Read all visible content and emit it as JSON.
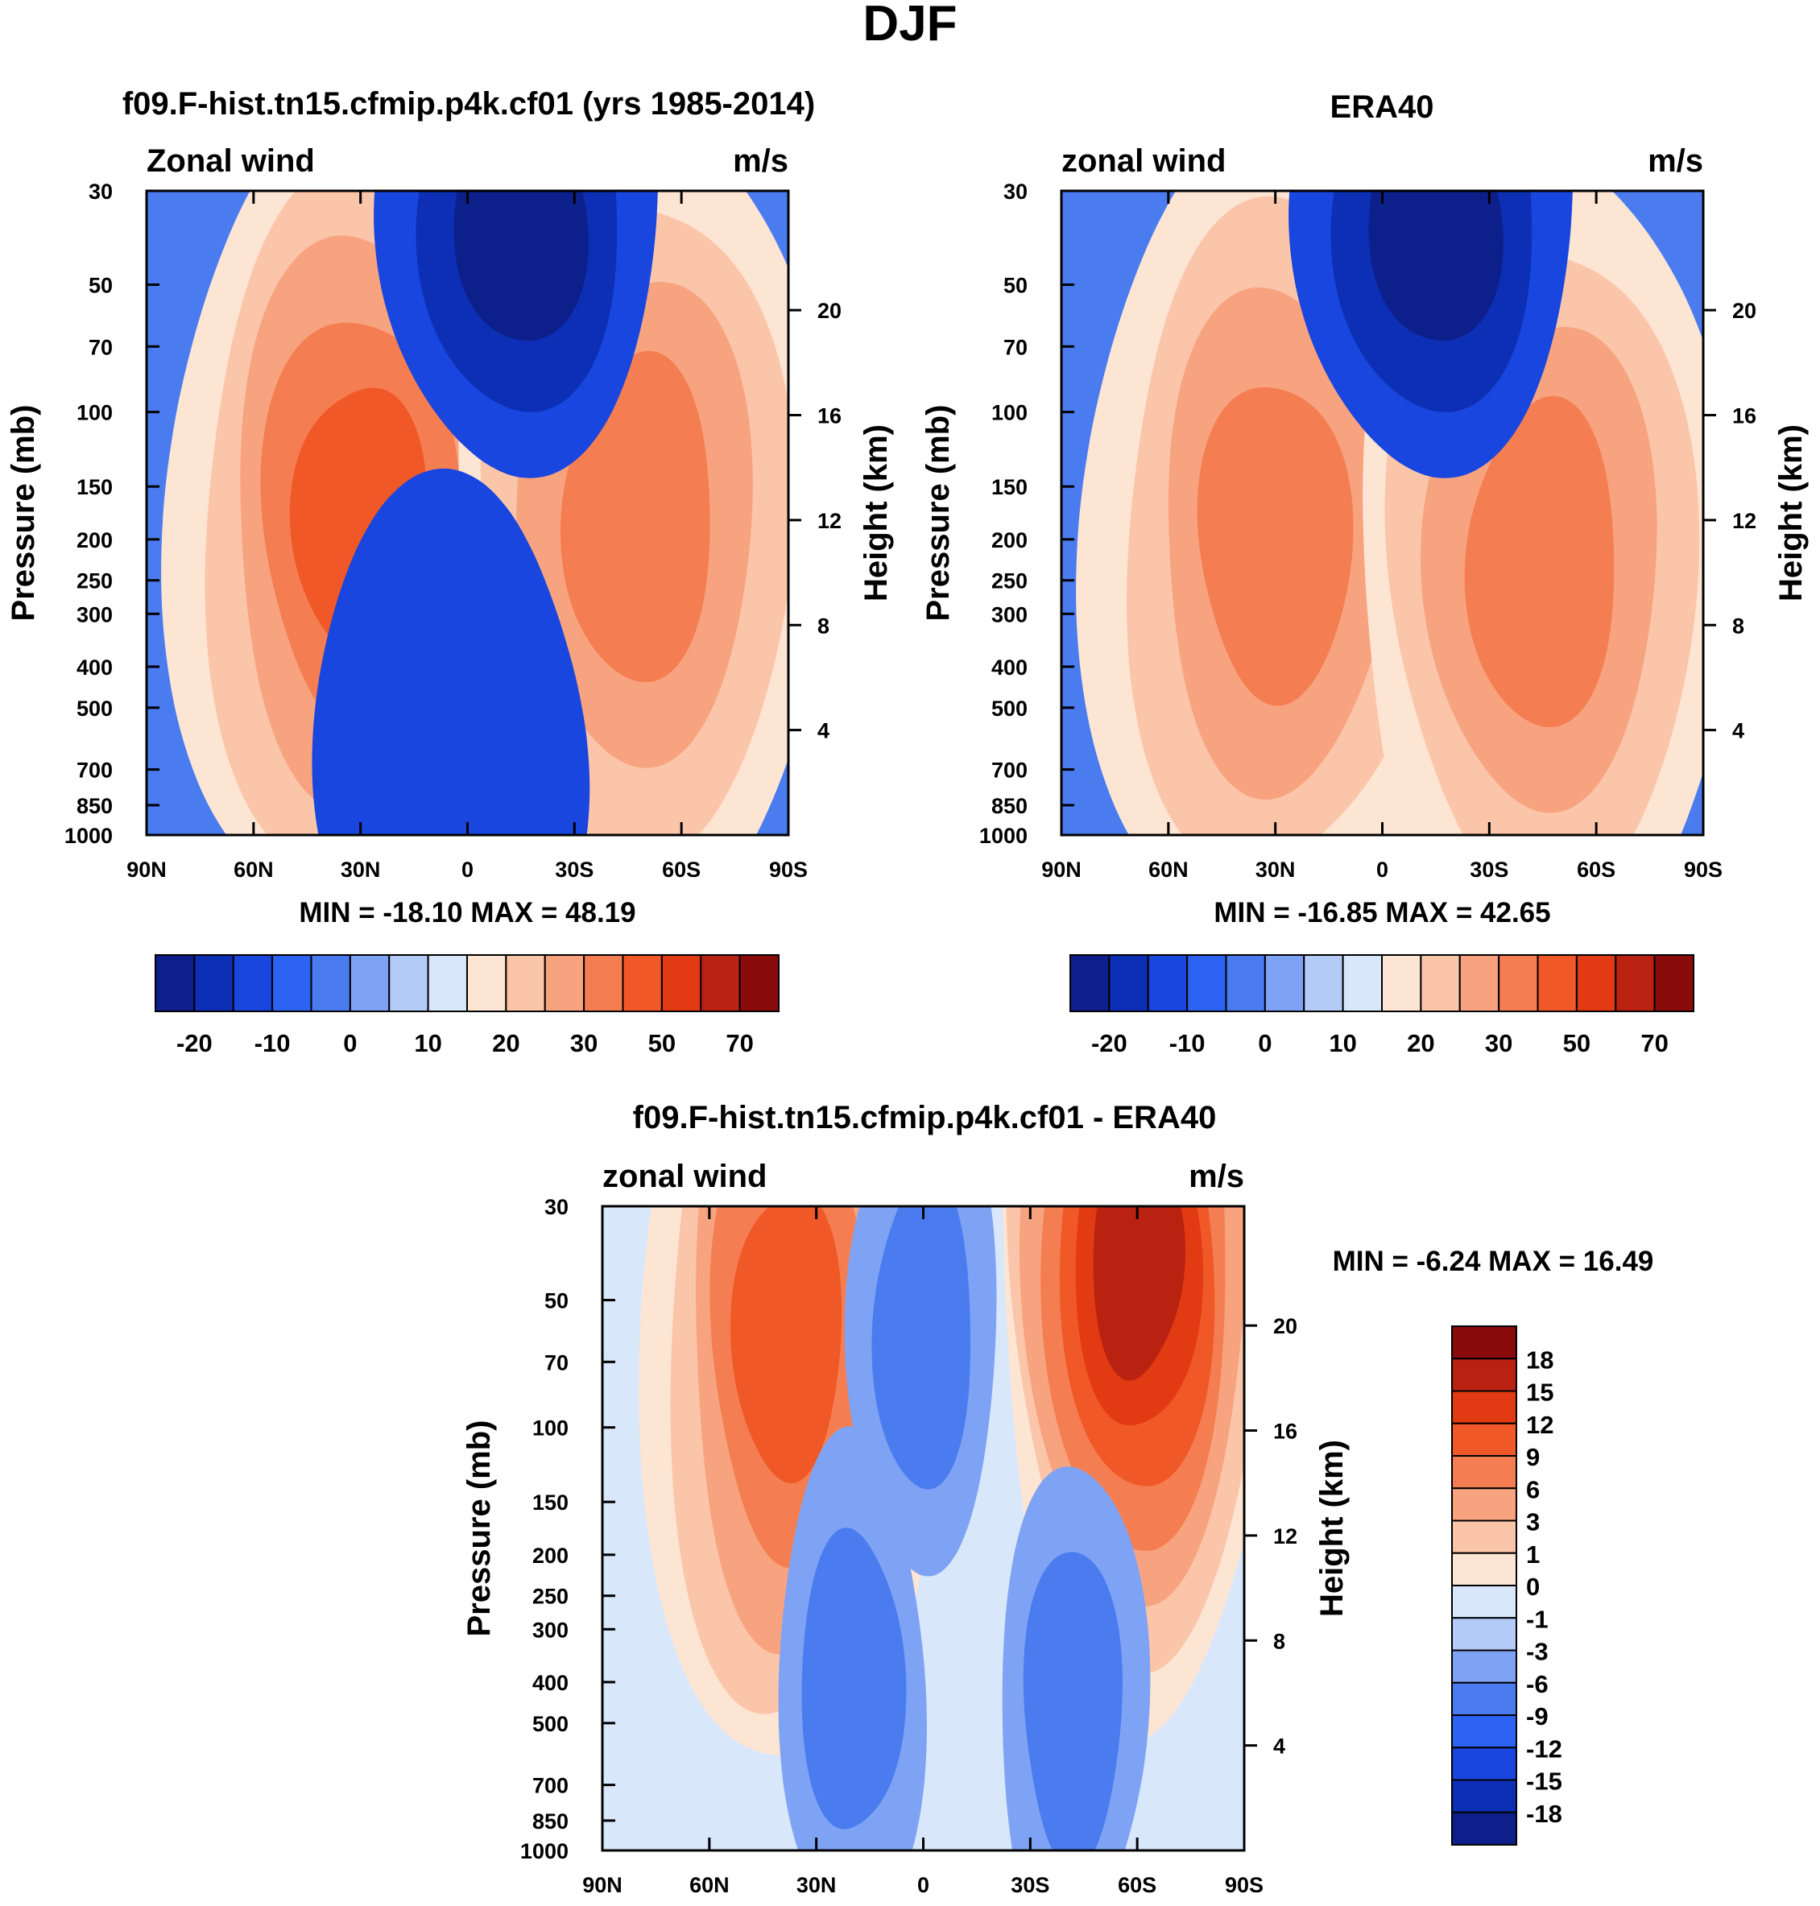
{
  "figure_title": "DJF",
  "palette": {
    "-20": "#0c1f8a",
    "-15": "#0c2fb5",
    "-10": "#1846de",
    "-5": "#2d63f2",
    "0": "#4a7cf0",
    "5": "#7fa3f4",
    "10": "#b4cbf8",
    "15": "#d9e7fb",
    "20": "#fde5d3",
    "25": "#fbc5aa",
    "30": "#f8a37f",
    "40": "#f47e51",
    "50": "#f05827",
    "60": "#e23a12",
    "70": "#b92210",
    "80": "#8a0b0b",
    "neg": "#2d63f2"
  },
  "diff_palette": {
    "-18": "#0c1f8a",
    "-15": "#0c2fb5",
    "-12": "#1846de",
    "-9": "#2d63f2",
    "-6": "#4a7cf0",
    "-3": "#7fa3f4",
    "-1": "#b4cbf8",
    "0": "#d9e7fb",
    "1": "#fde5d3",
    "3": "#fbc5aa",
    "6": "#f8a37f",
    "9": "#f47e51",
    "12": "#f05827",
    "15": "#e23a12",
    "18": "#b92210",
    "max": "#8a0b0b"
  },
  "chart_data": [
    {
      "type": "contour",
      "id": "model",
      "title": "f09.F-hist.tn15.cfmip.p4k.cf01 (yrs 1985-2014)",
      "left_label": "Zonal wind",
      "right_label": "m/s",
      "ylabel": "Pressure (mb)",
      "ylabel_right": "Height (km)",
      "x_ticks": [
        "90N",
        "60N",
        "30N",
        "0",
        "30S",
        "60S",
        "90S"
      ],
      "x_range": [
        90,
        -90
      ],
      "pressure_ticks": [
        30,
        50,
        70,
        100,
        150,
        200,
        250,
        300,
        400,
        500,
        700,
        850,
        1000
      ],
      "height_ticks": [
        20,
        16,
        12,
        8,
        4
      ],
      "stats": "MIN = -18.10  MAX =  48.19",
      "min": -18.1,
      "max": 48.19,
      "features": [
        {
          "kind": "jet",
          "lat": 30,
          "p_core": 180,
          "peak": 48,
          "levels": [
            20,
            25,
            30,
            40,
            50
          ]
        },
        {
          "kind": "jet",
          "lat": -48,
          "p_core": 180,
          "peak": 42,
          "levels": [
            20,
            25,
            30,
            40
          ]
        },
        {
          "kind": "easterly",
          "lat": -15,
          "p_core": 35,
          "min": -18,
          "levels": [
            -5,
            -10,
            -15
          ]
        },
        {
          "kind": "easterly",
          "lat": 5,
          "p_core": 600,
          "min": -8,
          "levels": [
            -5
          ]
        }
      ]
    },
    {
      "type": "contour",
      "id": "obs",
      "title": "ERA40",
      "left_label": "zonal wind",
      "right_label": "m/s",
      "ylabel": "Pressure (mb)",
      "ylabel_right": "Height (km)",
      "x_ticks": [
        "90N",
        "60N",
        "30N",
        "0",
        "30S",
        "60S",
        "90S"
      ],
      "x_range": [
        90,
        -90
      ],
      "pressure_ticks": [
        30,
        50,
        70,
        100,
        150,
        200,
        250,
        300,
        400,
        500,
        700,
        850,
        1000
      ],
      "height_ticks": [
        20,
        16,
        12,
        8,
        4
      ],
      "stats": "MIN = -16.85  MAX =  42.65",
      "min": -16.85,
      "max": 42.65,
      "features": [
        {
          "kind": "jet",
          "lat": 30,
          "p_core": 200,
          "peak": 42,
          "levels": [
            20,
            25,
            30,
            40
          ]
        },
        {
          "kind": "jet",
          "lat": -45,
          "p_core": 230,
          "peak": 36,
          "levels": [
            20,
            25,
            30,
            40
          ]
        },
        {
          "kind": "easterly",
          "lat": -15,
          "p_core": 35,
          "min": -16,
          "levels": [
            -5,
            -10,
            -15
          ]
        }
      ]
    },
    {
      "type": "contour",
      "id": "diff",
      "title": "f09.F-hist.tn15.cfmip.p4k.cf01 - ERA40",
      "left_label": "zonal wind",
      "right_label": "m/s",
      "ylabel": "Pressure (mb)",
      "ylabel_right": "Height (km)",
      "x_ticks": [
        "90N",
        "60N",
        "30N",
        "0",
        "30S",
        "60S",
        "90S"
      ],
      "x_range": [
        90,
        -90
      ],
      "pressure_ticks": [
        30,
        50,
        70,
        100,
        150,
        200,
        250,
        300,
        400,
        500,
        700,
        850,
        1000
      ],
      "height_ticks": [
        20,
        16,
        12,
        8,
        4
      ],
      "stats": "MIN =  -6.24  MAX =  16.49",
      "min": -6.24,
      "max": 16.49,
      "features": [
        {
          "kind": "positive",
          "lat": 38,
          "p_core": 60,
          "peak": 12,
          "levels": [
            1,
            3,
            6,
            9,
            12
          ]
        },
        {
          "kind": "positive",
          "lat": -60,
          "p_core": 40,
          "peak": 16,
          "levels": [
            1,
            3,
            6,
            9,
            12,
            15,
            18
          ]
        },
        {
          "kind": "negative",
          "lat": 0,
          "p_core": 60,
          "min": -4,
          "levels": [
            -1,
            -3
          ]
        },
        {
          "kind": "negative",
          "lat": 20,
          "p_core": 400,
          "min": -5,
          "levels": [
            -1,
            -3
          ]
        },
        {
          "kind": "negative",
          "lat": -42,
          "p_core": 450,
          "min": -6,
          "levels": [
            -1,
            -3
          ]
        }
      ]
    }
  ],
  "colorbar_main": {
    "levels": [
      -20,
      -15,
      -10,
      -5,
      0,
      5,
      10,
      15,
      20,
      25,
      30,
      40,
      50,
      60,
      70,
      80
    ],
    "labels": [
      "-20",
      "-10",
      "0",
      "10",
      "20",
      "30",
      "50",
      "70"
    ]
  },
  "colorbar_diff": {
    "levels": [
      -18,
      -15,
      -12,
      -9,
      -6,
      -3,
      -1,
      0,
      1,
      3,
      6,
      9,
      12,
      15,
      18,
      "max"
    ],
    "labels": [
      "18",
      "15",
      "12",
      "9",
      "6",
      "3",
      "1",
      "0",
      "-1",
      "-3",
      "-6",
      "-9",
      "-12",
      "-15",
      "-18"
    ]
  }
}
